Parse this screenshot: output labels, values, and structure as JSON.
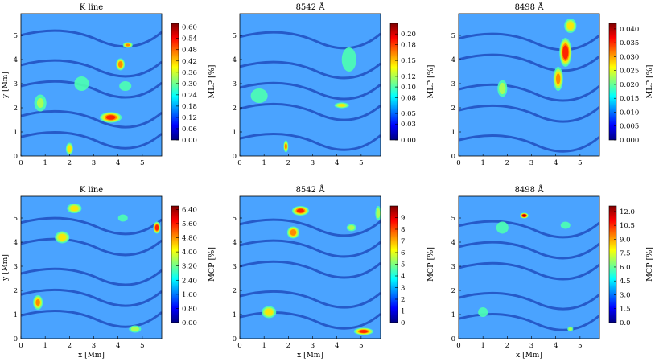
{
  "figure": {
    "colormap": "jet",
    "panel_background": "#4aa3ff",
    "colormap_stops": [
      "#00007f",
      "#0000ff",
      "#007fff",
      "#00ffff",
      "#7fff7f",
      "#ffff00",
      "#ff7f00",
      "#ff0000",
      "#7f0000"
    ],
    "x_label": "x [Mm]",
    "y_label": "y [Mm]",
    "x_ticks": [
      "0",
      "1",
      "2",
      "3",
      "4",
      "5"
    ],
    "y_ticks": [
      "0",
      "1",
      "2",
      "3",
      "4",
      "5"
    ]
  },
  "chart_data": [
    {
      "type": "heatmap",
      "title": "K line",
      "colorbar_label": "MLP [%]",
      "xlim": [
        0,
        5.8
      ],
      "ylim": [
        0,
        5.9
      ],
      "colorbar_ticks": [
        "0.00",
        "0.06",
        "0.12",
        "0.18",
        "0.24",
        "0.30",
        "0.36",
        "0.42",
        "0.48",
        "0.54",
        "0.60"
      ],
      "colorbar_range": [
        0,
        0.62
      ],
      "hotspots": [
        {
          "x": 3.7,
          "y": 1.6,
          "sx": 0.45,
          "sy": 0.22,
          "level": 0.85
        },
        {
          "x": 4.1,
          "y": 3.8,
          "sx": 0.18,
          "sy": 0.25,
          "level": 0.8
        },
        {
          "x": 4.4,
          "y": 4.6,
          "sx": 0.2,
          "sy": 0.12,
          "level": 0.75
        },
        {
          "x": 2.0,
          "y": 0.3,
          "sx": 0.15,
          "sy": 0.25,
          "level": 0.7
        },
        {
          "x": 0.8,
          "y": 2.2,
          "sx": 0.25,
          "sy": 0.35,
          "level": 0.55
        },
        {
          "x": 2.5,
          "y": 3.0,
          "sx": 0.3,
          "sy": 0.3,
          "level": 0.5
        },
        {
          "x": 4.3,
          "y": 2.9,
          "sx": 0.25,
          "sy": 0.2,
          "level": 0.5
        }
      ]
    },
    {
      "type": "heatmap",
      "title": "8542 Å",
      "colorbar_label": "MLP [%]",
      "xlim": [
        0,
        5.8
      ],
      "ylim": [
        0,
        5.9
      ],
      "colorbar_ticks": [
        "0.00",
        "0.03",
        "0.05",
        "0.08",
        "0.10",
        "0.12",
        "0.15",
        "0.18",
        "0.20"
      ],
      "colorbar_range": [
        0,
        0.22
      ],
      "hotspots": [
        {
          "x": 4.2,
          "y": 2.1,
          "sx": 0.3,
          "sy": 0.12,
          "level": 0.65
        },
        {
          "x": 1.9,
          "y": 0.4,
          "sx": 0.1,
          "sy": 0.25,
          "level": 0.75
        },
        {
          "x": 4.5,
          "y": 4.0,
          "sx": 0.3,
          "sy": 0.5,
          "level": 0.5
        },
        {
          "x": 0.8,
          "y": 2.5,
          "sx": 0.35,
          "sy": 0.3,
          "level": 0.45
        }
      ]
    },
    {
      "type": "heatmap",
      "title": "8498 Å",
      "colorbar_label": "MLP [%]",
      "xlim": [
        0,
        5.8
      ],
      "ylim": [
        0,
        5.9
      ],
      "colorbar_ticks": [
        "0.000",
        "0.005",
        "0.010",
        "0.015",
        "0.020",
        "0.025",
        "0.030",
        "0.035",
        "0.040"
      ],
      "colorbar_range": [
        0,
        0.042
      ],
      "hotspots": [
        {
          "x": 4.4,
          "y": 4.3,
          "sx": 0.25,
          "sy": 0.6,
          "level": 0.9
        },
        {
          "x": 4.1,
          "y": 3.2,
          "sx": 0.2,
          "sy": 0.5,
          "level": 0.75
        },
        {
          "x": 4.6,
          "y": 5.4,
          "sx": 0.25,
          "sy": 0.3,
          "level": 0.7
        },
        {
          "x": 1.8,
          "y": 2.8,
          "sx": 0.2,
          "sy": 0.35,
          "level": 0.6
        }
      ]
    },
    {
      "type": "heatmap",
      "title": "K line",
      "colorbar_label": "MCP [%]",
      "xlim": [
        0,
        5.8
      ],
      "ylim": [
        0,
        5.9
      ],
      "colorbar_ticks": [
        "0.00",
        "0.80",
        "1.60",
        "2.40",
        "3.20",
        "4.00",
        "4.80",
        "5.60",
        "6.40"
      ],
      "colorbar_range": [
        0,
        6.6
      ],
      "hotspots": [
        {
          "x": 5.6,
          "y": 4.6,
          "sx": 0.15,
          "sy": 0.25,
          "level": 0.9
        },
        {
          "x": 2.2,
          "y": 5.4,
          "sx": 0.3,
          "sy": 0.2,
          "level": 0.7
        },
        {
          "x": 1.7,
          "y": 4.2,
          "sx": 0.3,
          "sy": 0.25,
          "level": 0.7
        },
        {
          "x": 0.7,
          "y": 1.5,
          "sx": 0.2,
          "sy": 0.3,
          "level": 0.75
        },
        {
          "x": 4.7,
          "y": 0.4,
          "sx": 0.25,
          "sy": 0.15,
          "level": 0.6
        },
        {
          "x": 4.2,
          "y": 5.0,
          "sx": 0.2,
          "sy": 0.15,
          "level": 0.5
        }
      ]
    },
    {
      "type": "heatmap",
      "title": "8542 Å",
      "colorbar_label": "MCP [%]",
      "xlim": [
        0,
        5.8
      ],
      "ylim": [
        0,
        5.9
      ],
      "colorbar_ticks": [
        "0",
        "1",
        "2",
        "3",
        "4",
        "5",
        "6",
        "7",
        "8",
        "9"
      ],
      "colorbar_range": [
        0,
        10
      ],
      "hotspots": [
        {
          "x": 2.5,
          "y": 5.3,
          "sx": 0.35,
          "sy": 0.2,
          "level": 0.85
        },
        {
          "x": 2.2,
          "y": 4.4,
          "sx": 0.25,
          "sy": 0.25,
          "level": 0.8
        },
        {
          "x": 5.1,
          "y": 0.3,
          "sx": 0.4,
          "sy": 0.15,
          "level": 0.85
        },
        {
          "x": 1.2,
          "y": 1.1,
          "sx": 0.3,
          "sy": 0.25,
          "level": 0.7
        },
        {
          "x": 4.6,
          "y": 4.6,
          "sx": 0.2,
          "sy": 0.15,
          "level": 0.6
        },
        {
          "x": 5.7,
          "y": 5.2,
          "sx": 0.12,
          "sy": 0.3,
          "level": 0.6
        }
      ]
    },
    {
      "type": "heatmap",
      "title": "8498 Å",
      "colorbar_label": "MCP [%]",
      "xlim": [
        0,
        5.8
      ],
      "ylim": [
        0,
        5.9
      ],
      "colorbar_ticks": [
        "0.0",
        "1.5",
        "3.0",
        "4.5",
        "6.0",
        "7.5",
        "9.0",
        "10.5",
        "12.0"
      ],
      "colorbar_range": [
        0,
        12.6
      ],
      "hotspots": [
        {
          "x": 2.7,
          "y": 5.1,
          "sx": 0.18,
          "sy": 0.12,
          "level": 0.95
        },
        {
          "x": 1.8,
          "y": 4.6,
          "sx": 0.25,
          "sy": 0.25,
          "level": 0.5
        },
        {
          "x": 4.4,
          "y": 4.7,
          "sx": 0.2,
          "sy": 0.15,
          "level": 0.5
        },
        {
          "x": 4.6,
          "y": 0.4,
          "sx": 0.12,
          "sy": 0.1,
          "level": 0.6
        },
        {
          "x": 1.0,
          "y": 1.1,
          "sx": 0.2,
          "sy": 0.2,
          "level": 0.45
        }
      ]
    }
  ]
}
